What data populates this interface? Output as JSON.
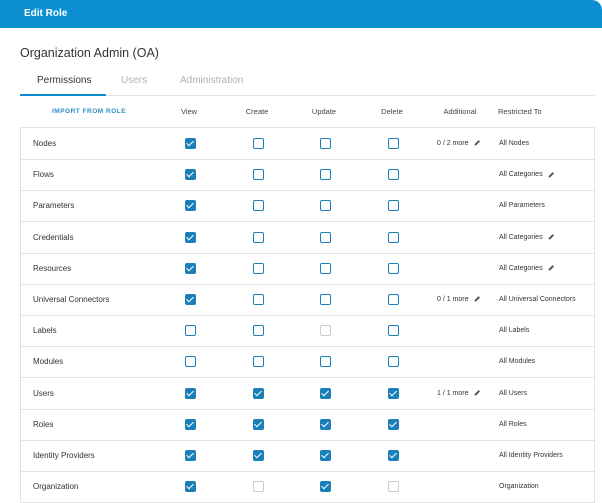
{
  "header": {
    "title": "Edit Role"
  },
  "role_name": "Organization Admin (OA)",
  "tabs": [
    "Permissions",
    "Users",
    "Administration"
  ],
  "active_tab": 0,
  "table": {
    "import_label": "IMPORT FROM ROLE",
    "columns": [
      "View",
      "Create",
      "Update",
      "Delete",
      "Additional",
      "Restricted To"
    ],
    "rows": [
      {
        "name": "Nodes",
        "checks": [
          true,
          false,
          false,
          false
        ],
        "additional": "0 / 2 more",
        "restricted": "All Nodes"
      },
      {
        "name": "Flows",
        "checks": [
          true,
          false,
          false,
          false
        ],
        "restricted": "All Categories",
        "restricted_editable": true
      },
      {
        "name": "Parameters",
        "checks": [
          true,
          false,
          false,
          false
        ],
        "restricted": "All Parameters"
      },
      {
        "name": "Credentials",
        "checks": [
          true,
          false,
          false,
          false
        ],
        "restricted": "All Categories",
        "restricted_editable": true
      },
      {
        "name": "Resources",
        "checks": [
          true,
          false,
          false,
          false
        ],
        "restricted": "All Categories",
        "restricted_editable": true
      },
      {
        "name": "Universal Connectors",
        "checks": [
          true,
          false,
          false,
          false
        ],
        "additional": "0 / 1 more",
        "restricted": "All Universal Connectors"
      },
      {
        "name": "Labels",
        "checks": [
          false,
          false,
          false,
          false
        ],
        "disabled": [
          2
        ],
        "restricted": "All Labels"
      },
      {
        "name": "Modules",
        "checks": [
          false,
          false,
          false,
          false
        ],
        "restricted": "All Modules"
      },
      {
        "name": "Users",
        "checks": [
          true,
          true,
          true,
          true
        ],
        "additional": "1 / 1 more",
        "restricted": "All Users"
      },
      {
        "name": "Roles",
        "checks": [
          true,
          true,
          true,
          true
        ],
        "restricted": "All Roles"
      },
      {
        "name": "Identity Providers",
        "checks": [
          true,
          true,
          true,
          true
        ],
        "restricted": "All Identity Providers"
      },
      {
        "name": "Organization",
        "checks": [
          true,
          false,
          true,
          false
        ],
        "disabled": [
          1,
          3
        ],
        "restricted": "Organization"
      }
    ]
  }
}
